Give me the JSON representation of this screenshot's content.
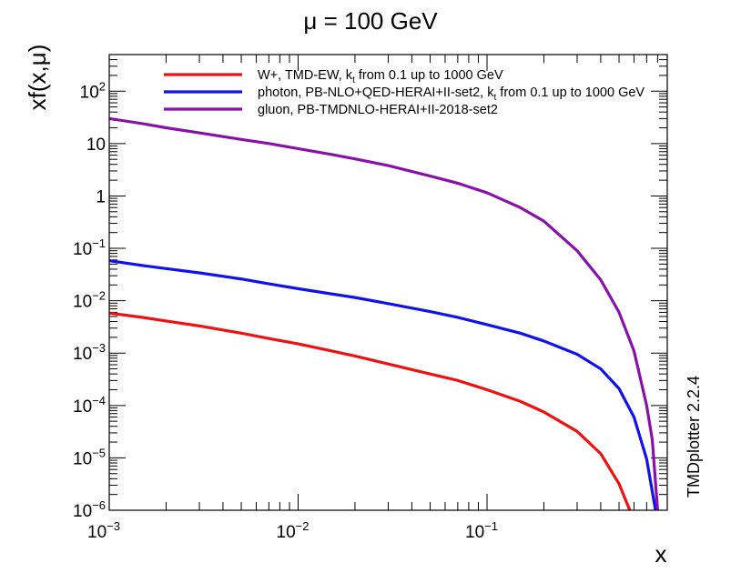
{
  "chart_data": {
    "type": "line",
    "title": "μ = 100 GeV",
    "xlabel": "x",
    "ylabel": "xf(x,μ)",
    "xscale": "log",
    "yscale": "log",
    "xlim": [
      0.001,
      0.9
    ],
    "ylim": [
      1e-06,
      500
    ],
    "x_ticks": [
      {
        "value": 0.001,
        "base": "10",
        "exp": "−3"
      },
      {
        "value": 0.01,
        "base": "10",
        "exp": "−2"
      },
      {
        "value": 0.1,
        "base": "10",
        "exp": "−1"
      }
    ],
    "y_ticks": [
      {
        "value": 1e-06,
        "base": "10",
        "exp": "−6"
      },
      {
        "value": 1e-05,
        "base": "10",
        "exp": "−5"
      },
      {
        "value": 0.0001,
        "base": "10",
        "exp": "−4"
      },
      {
        "value": 0.001,
        "base": "10",
        "exp": "−3"
      },
      {
        "value": 0.01,
        "base": "10",
        "exp": "−2"
      },
      {
        "value": 0.1,
        "base": "10",
        "exp": "−1"
      },
      {
        "value": 1,
        "base": "1",
        "exp": ""
      },
      {
        "value": 10,
        "base": "10",
        "exp": ""
      },
      {
        "value": 100,
        "base": "10",
        "exp": "2"
      }
    ],
    "legend_position": "top",
    "side_label": "TMDplotter 2.2.4",
    "series": [
      {
        "name": "W+, TMD-EW, k",
        "name_sub": "t",
        "name_rest": " from 0.1 up to 1000 GeV",
        "color": "#ee1111",
        "x": [
          0.001,
          0.0015,
          0.002,
          0.003,
          0.005,
          0.007,
          0.01,
          0.015,
          0.02,
          0.03,
          0.05,
          0.07,
          0.1,
          0.15,
          0.2,
          0.3,
          0.4,
          0.5,
          0.57
        ],
        "y": [
          0.0058,
          0.0048,
          0.0041,
          0.0033,
          0.0024,
          0.0019,
          0.0015,
          0.0011,
          0.00088,
          0.00062,
          0.0004,
          0.0003,
          0.0002,
          0.00012,
          7.5e-05,
          3.2e-05,
          1.2e-05,
          3.2e-06,
          1e-06
        ]
      },
      {
        "name": "photon, PB-NLO+QED-HERAI+II-set2, k",
        "name_sub": "t",
        "name_rest": " from 0.1 up to 1000 GeV",
        "color": "#1111ee",
        "x": [
          0.001,
          0.0015,
          0.002,
          0.003,
          0.005,
          0.007,
          0.01,
          0.015,
          0.02,
          0.03,
          0.05,
          0.07,
          0.1,
          0.15,
          0.2,
          0.3,
          0.4,
          0.5,
          0.6,
          0.7,
          0.78
        ],
        "y": [
          0.058,
          0.047,
          0.041,
          0.034,
          0.026,
          0.021,
          0.017,
          0.0135,
          0.0115,
          0.0088,
          0.0062,
          0.0048,
          0.0035,
          0.0024,
          0.0017,
          0.00095,
          0.0005,
          0.00021,
          6e-05,
          9.5e-06,
          1e-06
        ]
      },
      {
        "name": "gluon, PB-TMDNLO-HERAI+II-2018-set2",
        "name_sub": "",
        "name_rest": "",
        "color": "#8811aa",
        "x": [
          0.001,
          0.0015,
          0.002,
          0.003,
          0.005,
          0.007,
          0.01,
          0.015,
          0.02,
          0.03,
          0.05,
          0.07,
          0.1,
          0.15,
          0.2,
          0.3,
          0.4,
          0.5,
          0.6,
          0.7,
          0.75,
          0.8
        ],
        "y": [
          30,
          24,
          20,
          16,
          12,
          10,
          8,
          6.2,
          5.1,
          3.8,
          2.4,
          1.75,
          1.15,
          0.6,
          0.33,
          0.09,
          0.025,
          0.006,
          0.0011,
          0.0001,
          2.2e-05,
          1e-06
        ]
      }
    ]
  }
}
